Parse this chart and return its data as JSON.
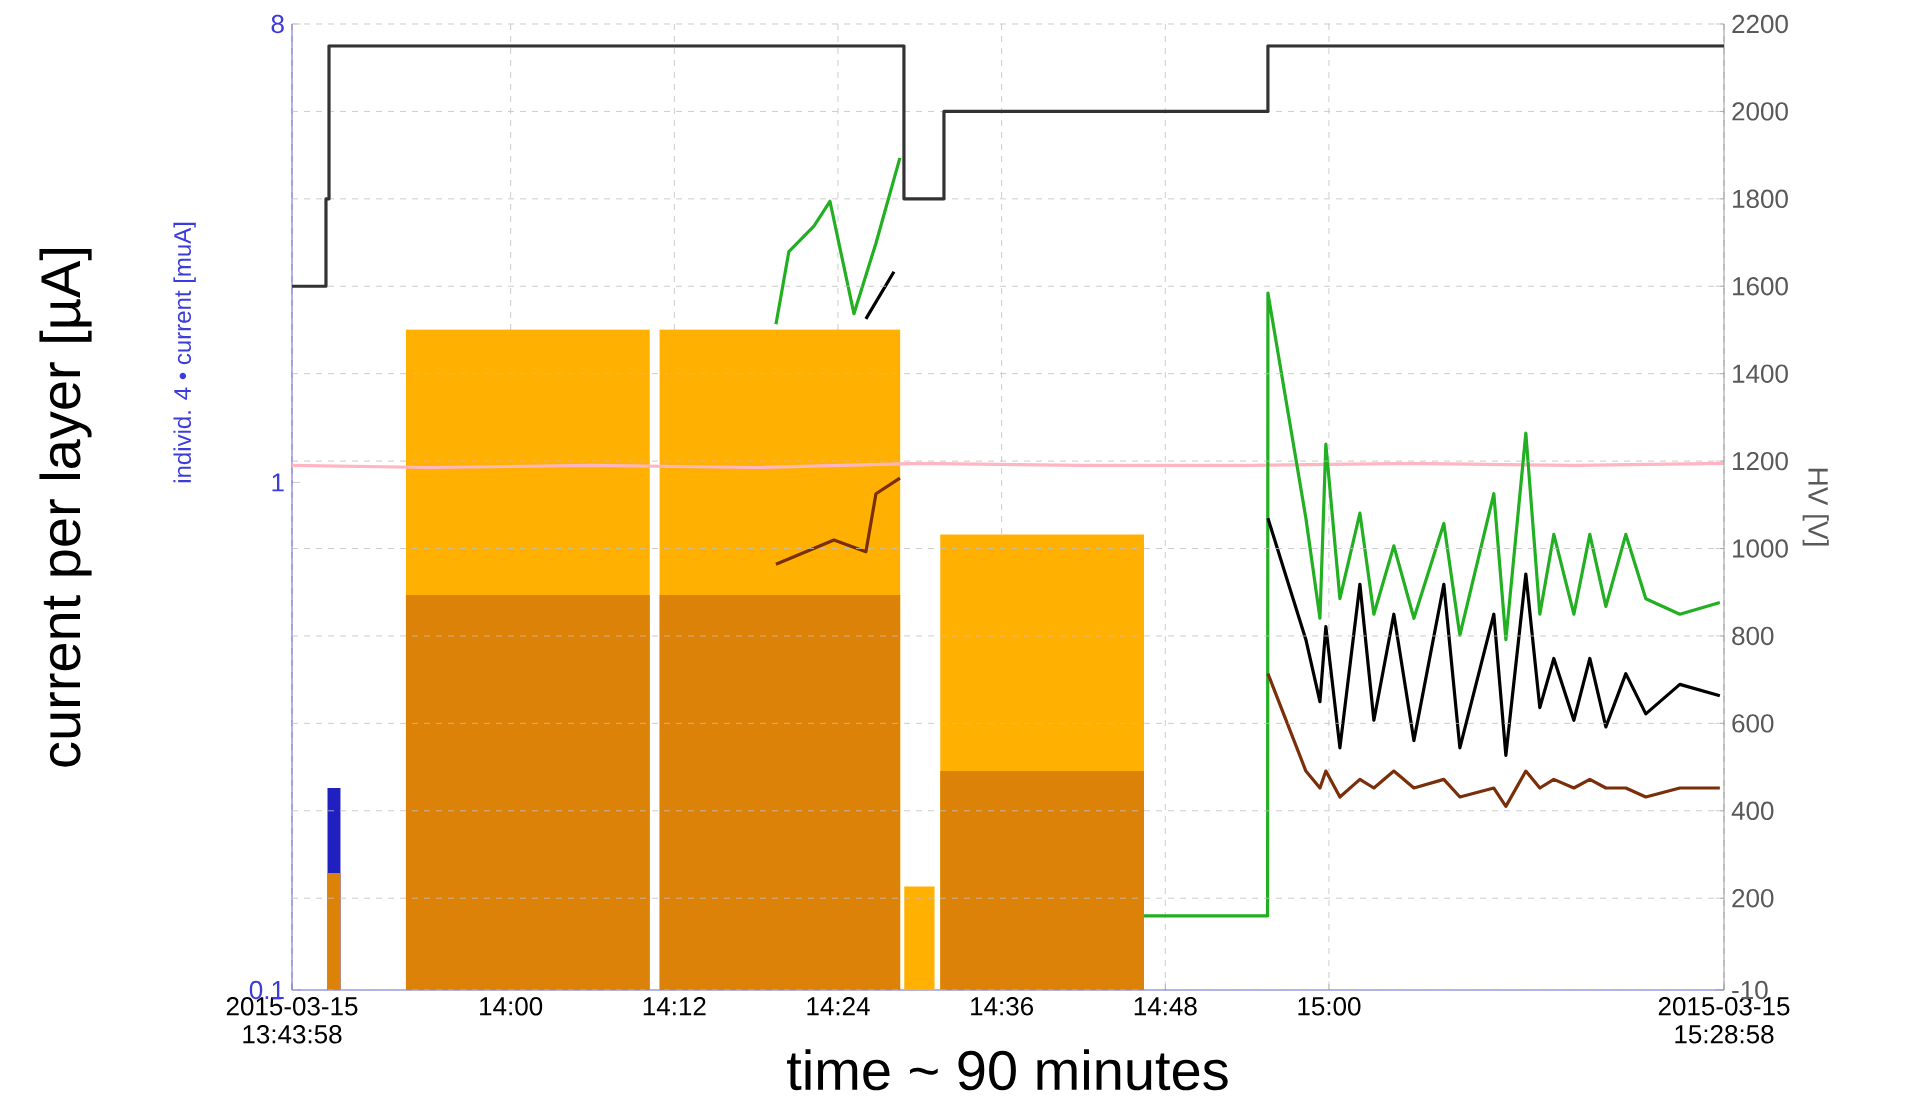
{
  "chart_data": {
    "type": "line",
    "xlabel": "time ~ 90 minutes",
    "ylabel": "current per layer  [µA]",
    "y2label": "HV [V]",
    "annotations": [
      "individ. 4 • current [muA]"
    ],
    "xlim": [
      13.73278,
      15.48278
    ],
    "xticks": [
      {
        "value": 13.73278,
        "label": "2015-03-15 13:43:58"
      },
      {
        "value": 14.0,
        "label": "14:00"
      },
      {
        "value": 14.2,
        "label": "14:12"
      },
      {
        "value": 14.4,
        "label": "14:24"
      },
      {
        "value": 14.6,
        "label": "14:36"
      },
      {
        "value": 14.8,
        "label": "14:48"
      },
      {
        "value": 15.0,
        "label": "15:00"
      },
      {
        "value": 15.48278,
        "label": "2015-03-15 15:28:58"
      }
    ],
    "log": "y",
    "ylim": [
      0.1,
      8
    ],
    "yticks": [
      0.1,
      1,
      8
    ],
    "y2lim": [
      -10,
      2200
    ],
    "y2ticks": [
      -10,
      200,
      400,
      600,
      800,
      1000,
      1200,
      1400,
      1600,
      1800,
      2000,
      2200
    ],
    "grid": true,
    "marker": "none",
    "line_style": "solid",
    "series": [
      {
        "type": "area",
        "color": "#ffb000",
        "x": [
          13.872,
          14.17,
          14.176,
          14.182,
          14.476,
          14.478,
          14.481,
          14.518,
          14.52,
          14.525,
          14.774
        ],
        "values": [
          2.0,
          2.0,
          null,
          2.0,
          2.0,
          null,
          0.16,
          0.16,
          null,
          0.79,
          0.79
        ]
      },
      {
        "type": "area",
        "color": "#2020c0",
        "x": [
          13.776,
          13.792
        ],
        "values": [
          0.25,
          0.25
        ]
      },
      {
        "type": "area",
        "color": "#dd8209",
        "x": [
          13.776,
          13.792,
          13.83,
          13.872,
          14.17,
          14.176,
          14.182,
          14.476,
          14.5,
          14.525,
          14.774
        ],
        "values": [
          0.17,
          0.17,
          null,
          0.6,
          0.6,
          null,
          0.6,
          0.6,
          null,
          0.27,
          0.27
        ]
      },
      {
        "type": "line",
        "color": "#ffb6c1",
        "x": [
          13.7328,
          13.9,
          14.1,
          14.3,
          14.5,
          14.7,
          14.9,
          15.1,
          15.3,
          15.48278
        ],
        "values": [
          1.08,
          1.07,
          1.08,
          1.07,
          1.09,
          1.08,
          1.08,
          1.09,
          1.08,
          1.09
        ]
      },
      {
        "type": "line",
        "color": "#22b022",
        "x": [
          14.3242,
          14.34,
          14.3706,
          14.3902,
          14.4195,
          14.4464,
          14.4757,
          14.6,
          14.774,
          14.925,
          14.9254,
          14.9718,
          14.989,
          14.9962,
          15.0134,
          15.0378,
          15.0549,
          15.0793,
          15.1038,
          15.1404,
          15.16,
          15.2015,
          15.2162,
          15.2406,
          15.2577,
          15.2748,
          15.2993,
          15.3188,
          15.3384,
          15.3628,
          15.3872,
          15.4288,
          15.4777
        ],
        "values": [
          2.05,
          2.85,
          3.2,
          3.58,
          2.15,
          2.96,
          4.36,
          null,
          0.14,
          0.14,
          2.36,
          0.85,
          0.54,
          1.19,
          0.59,
          0.87,
          0.55,
          0.75,
          0.54,
          0.83,
          0.5,
          0.95,
          0.49,
          1.25,
          0.55,
          0.79,
          0.55,
          0.79,
          0.57,
          0.79,
          0.59,
          0.55,
          0.58
        ]
      },
      {
        "type": "line",
        "color": "#000000",
        "x": [
          14.4341,
          14.4684,
          14.7,
          14.9254,
          14.9718,
          14.989,
          14.9962,
          15.0134,
          15.0378,
          15.0549,
          15.0793,
          15.1038,
          15.1404,
          15.16,
          15.2015,
          15.2162,
          15.2406,
          15.2577,
          15.2748,
          15.2993,
          15.3188,
          15.3384,
          15.3628,
          15.3872,
          15.4288,
          15.4777
        ],
        "values": [
          2.1,
          2.6,
          null,
          0.85,
          0.49,
          0.37,
          0.52,
          0.3,
          0.63,
          0.34,
          0.55,
          0.31,
          0.63,
          0.3,
          0.55,
          0.29,
          0.66,
          0.36,
          0.45,
          0.34,
          0.45,
          0.33,
          0.42,
          0.35,
          0.4,
          0.38
        ]
      },
      {
        "type": "line",
        "color": "#7a2e0a",
        "x": [
          14.3242,
          14.3951,
          14.4341,
          14.4464,
          14.4757,
          14.7,
          14.9254,
          14.9718,
          14.989,
          14.9962,
          15.0134,
          15.0378,
          15.0549,
          15.0793,
          15.1038,
          15.1404,
          15.16,
          15.2015,
          15.2162,
          15.2406,
          15.2577,
          15.2748,
          15.2993,
          15.3188,
          15.3384,
          15.3628,
          15.3872,
          15.4288,
          15.4777
        ],
        "values": [
          0.69,
          0.77,
          0.73,
          0.95,
          1.02,
          null,
          0.42,
          0.27,
          0.25,
          0.27,
          0.24,
          0.26,
          0.25,
          0.27,
          0.25,
          0.26,
          0.24,
          0.25,
          0.23,
          0.27,
          0.25,
          0.26,
          0.25,
          0.26,
          0.25,
          0.25,
          0.24,
          0.25,
          0.25
        ]
      },
      {
        "type": "step",
        "axis": "y2",
        "color": "#333333",
        "x": [
          13.7328,
          13.7743,
          13.778,
          14.4806,
          14.5295,
          14.9254,
          15.48278
        ],
        "values": [
          1600,
          1800,
          2150,
          1800,
          2000,
          2150,
          2150
        ]
      }
    ]
  }
}
